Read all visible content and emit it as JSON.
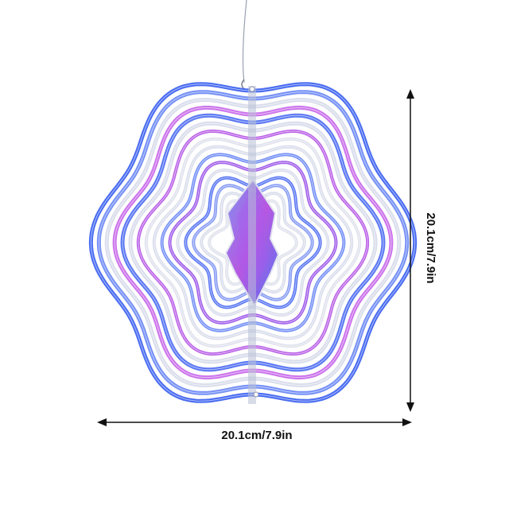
{
  "product": {
    "icon": "wind-spinner-icon",
    "colors": {
      "blue": "#2b4fe0",
      "light_blue": "#6fa0f5",
      "purple": "#8a3fe0",
      "magenta": "#c95be8",
      "silver": "#d9dbe6",
      "line": "#111111"
    }
  },
  "dimensions": {
    "width_label": "20.1cm/7.9in",
    "height_label": "20.1cm/7.9in"
  }
}
